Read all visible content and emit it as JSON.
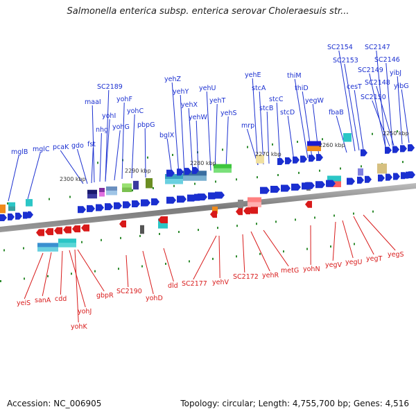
{
  "title": "Salmonella enterica subsp. enterica serovar Choleraesuis str...",
  "footer": {
    "accession": "Accession: NC_006905",
    "summary": "Topology: circular; Length: 4,755,700 bp; Genes: 4,516"
  },
  "colors": {
    "forward": "#1a2fd0",
    "reverse": "#d81a1a",
    "backbone": "#888888",
    "tick": "#2e8b2e"
  },
  "scale": {
    "labels": [
      "2300 kbp",
      "2290 kbp",
      "2280 kbp",
      "2270 kbp",
      "2260 kbp",
      "2250 kbp"
    ]
  },
  "forward_genes": [
    "mglB",
    "mglC",
    "pcaK",
    "gdo",
    "fst",
    "maaI",
    "nhg",
    "yohI",
    "yohG",
    "SC2189",
    "yohF",
    "yohC",
    "pbpG",
    "bglX",
    "yehZ",
    "yehY",
    "yehX",
    "yehW",
    "yehU",
    "yehT",
    "yehS",
    "yehE",
    "mrp",
    "stcA",
    "stcB",
    "stcC",
    "stcD",
    "thiM",
    "thiD",
    "yegW",
    "fbaB",
    "SC2154",
    "SC2153",
    "cesT",
    "SC2147",
    "SC2149",
    "SC2146",
    "yibJ",
    "SC2148",
    "yibG",
    "SC2150"
  ],
  "reverse_genes": [
    "yeiS",
    "sanA",
    "cdd",
    "yohJ",
    "yohK",
    "gbpR",
    "SC2190",
    "yohD",
    "dld",
    "SC2177",
    "yehV",
    "SC2172",
    "yehR",
    "metG",
    "yohN",
    "yegV",
    "yegU",
    "yegT",
    "yegS"
  ]
}
